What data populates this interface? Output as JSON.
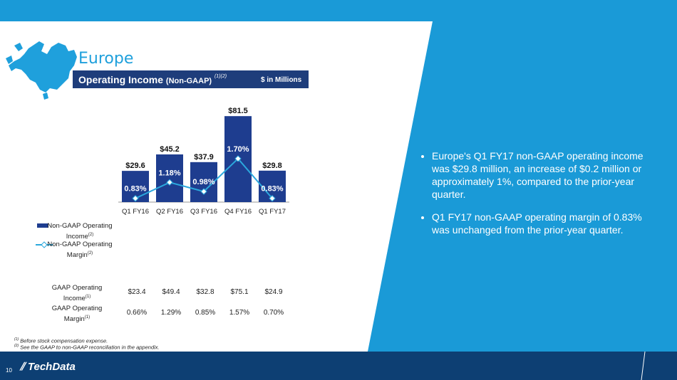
{
  "page": {
    "title": "Europe",
    "header_title": "Operating Income",
    "header_subtitle": "(Non-GAAP)",
    "header_footnote_ref": "(1)(2)",
    "units": "$ in Millions",
    "page_number": "10",
    "logo_text": "TechData"
  },
  "colors": {
    "bar": "#1e3d8f",
    "line": "#2ba8dd",
    "navy": "#0d3f73",
    "accent_blue": "#1a9ad7"
  },
  "icons": {
    "map": "europe-map-icon",
    "logo": "tech-data-logo-icon"
  },
  "chart_data": {
    "type": "bar",
    "categories": [
      "Q1 FY16",
      "Q2 FY16",
      "Q3 FY16",
      "Q4 FY16",
      "Q1 FY17"
    ],
    "series": [
      {
        "name": "Non-GAAP Operating Income",
        "name_footnote": "(2)",
        "type": "bar",
        "values": [
          29.6,
          45.2,
          37.9,
          81.5,
          29.8
        ],
        "value_labels": [
          "$29.6",
          "$45.2",
          "$37.9",
          "$81.5",
          "$29.8"
        ]
      },
      {
        "name": "Non-GAAP Operating Margin",
        "name_footnote": "(2)",
        "type": "line",
        "values": [
          0.83,
          1.18,
          0.98,
          1.7,
          0.83
        ],
        "value_labels": [
          "0.83%",
          "1.18%",
          "0.98%",
          "1.70%",
          "0.83%"
        ]
      }
    ],
    "ylim": [
      0,
      85
    ],
    "margin_ylim": [
      0,
      2.4
    ],
    "grid": false,
    "legend_position": "bottom-left"
  },
  "gaap_table": {
    "rows": [
      {
        "label": "GAAP Operating Income",
        "footnote": "(1)",
        "values": [
          "$23.4",
          "$49.4",
          "$32.8",
          "$75.1",
          "$24.9"
        ]
      },
      {
        "label": "GAAP Operating Margin",
        "footnote": "(1)",
        "values": [
          "0.66%",
          "1.29%",
          "0.85%",
          "1.57%",
          "0.70%"
        ]
      }
    ]
  },
  "footnotes": [
    {
      "ref": "(1)",
      "text": "Before stock compensation expense."
    },
    {
      "ref": "(2)",
      "text": "See the GAAP to non-GAAP reconciliation in the appendix."
    }
  ],
  "bullets": [
    "Europe's Q1 FY17 non-GAAP operating income was $29.8 million, an increase of $0.2 million or approximately 1%, compared to the prior-year quarter.",
    "Q1 FY17 non-GAAP operating margin of 0.83% was unchanged from the prior-year quarter."
  ]
}
